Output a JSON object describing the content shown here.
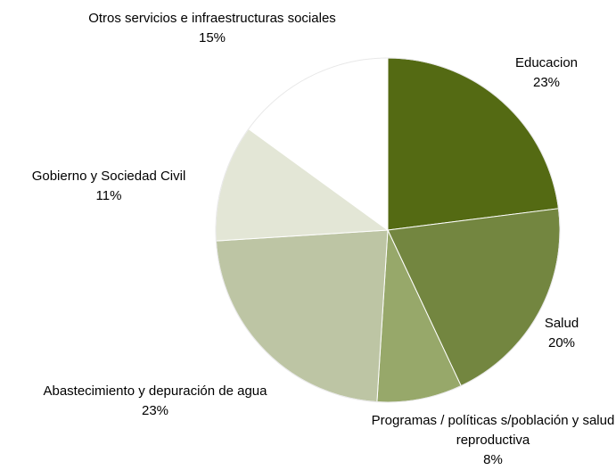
{
  "chart_data": {
    "type": "pie",
    "title": "",
    "start_angle_deg": 0,
    "direction": "clockwise",
    "slices": [
      {
        "label": "Educacion",
        "value": 23,
        "pct_label": "23%",
        "color": "#546a13"
      },
      {
        "label": "Salud",
        "value": 20,
        "pct_label": "20%",
        "color": "#738640"
      },
      {
        "label": "Programas / políticas s/población y salud reproductiva",
        "value": 8,
        "pct_label": "8%",
        "color": "#97a86a"
      },
      {
        "label": "Abastecimiento y depuración de agua",
        "value": 23,
        "pct_label": "23%",
        "color": "#bdc5a4"
      },
      {
        "label": "Gobierno y Sociedad Civil",
        "value": 11,
        "pct_label": "11%",
        "color": "#e3e6d6"
      },
      {
        "label": "Otros servicios e infraestructuras sociales",
        "value": 15,
        "pct_label": "15%",
        "color": "#ffffff"
      }
    ]
  }
}
